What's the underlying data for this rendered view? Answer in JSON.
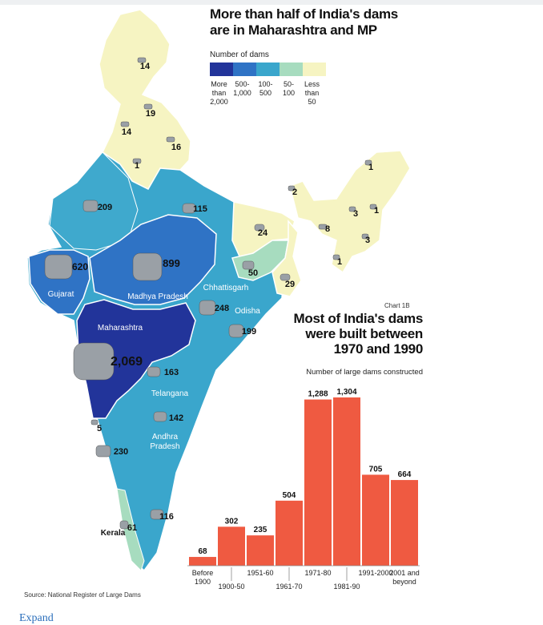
{
  "map": {
    "title_line1": "More than half of India's dams",
    "title_line2": "are in Maharashtra and MP",
    "legend_title": "Number of dams",
    "legend": [
      {
        "label": "More\nthan\n2,000",
        "color": "#22349a"
      },
      {
        "label": "500-\n1,000",
        "color": "#2f73c5"
      },
      {
        "label": "100-\n500",
        "color": "#3aa6cc"
      },
      {
        "label": "50-\n100",
        "color": "#a7dcbf"
      },
      {
        "label": "Less\nthan\n50",
        "color": "#f6f4c2"
      }
    ],
    "states": [
      {
        "name": "",
        "count": "14"
      },
      {
        "name": "",
        "count": "19"
      },
      {
        "name": "",
        "count": "14"
      },
      {
        "name": "",
        "count": "16"
      },
      {
        "name": "",
        "count": "1"
      },
      {
        "name": "",
        "count": "209"
      },
      {
        "name": "",
        "count": "115"
      },
      {
        "name": "Gujarat",
        "count": "620"
      },
      {
        "name": "Madhya Pradesh",
        "count": "899"
      },
      {
        "name": "Chhattisgarh",
        "count": "248"
      },
      {
        "name": "Odisha",
        "count": "199"
      },
      {
        "name": "Maharashtra",
        "count": "2,069"
      },
      {
        "name": "Telangana",
        "count": "163"
      },
      {
        "name": "Andhra Pradesh",
        "count": "142"
      },
      {
        "name": "",
        "count": "5"
      },
      {
        "name": "",
        "count": "230"
      },
      {
        "name": "",
        "count": "116"
      },
      {
        "name": "Kerala",
        "count": "61"
      },
      {
        "name": "",
        "count": "24"
      },
      {
        "name": "",
        "count": "50"
      },
      {
        "name": "",
        "count": "29"
      },
      {
        "name": "",
        "count": "2"
      },
      {
        "name": "",
        "count": "1"
      },
      {
        "name": "",
        "count": "3"
      },
      {
        "name": "",
        "count": "1"
      },
      {
        "name": "",
        "count": "8"
      },
      {
        "name": "",
        "count": "3"
      },
      {
        "name": "",
        "count": "1"
      }
    ]
  },
  "chart_data": {
    "type": "bar",
    "tag": "Chart 1B",
    "title_line1": "Most of India's dams",
    "title_line2": "were built between",
    "title_line3": "1970 and 1990",
    "subtitle": "Number of large dams constructed",
    "categories": [
      "Before\n1900",
      "1900-50",
      "1951-60",
      "1961-70",
      "1971-80",
      "1981-90",
      "1991-2000",
      "2001 and\nbeyond"
    ],
    "values": [
      68,
      302,
      235,
      504,
      1288,
      1304,
      705,
      664
    ],
    "value_labels": [
      "68",
      "302",
      "235",
      "504",
      "1,288",
      "1,304",
      "705",
      "664"
    ],
    "bar_color": "#ef5a41",
    "ylim": [
      0,
      1304
    ]
  },
  "source": "Source: National Register of Large Dams",
  "expand_link": "Expand"
}
